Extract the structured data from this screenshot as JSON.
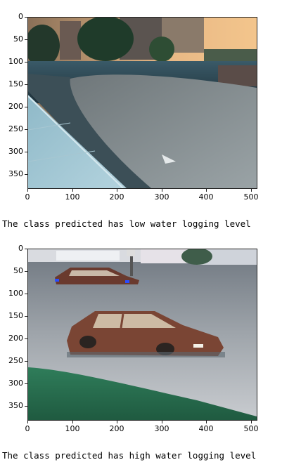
{
  "plots": [
    {
      "yticks": [
        "0",
        "50",
        "100",
        "150",
        "200",
        "250",
        "300",
        "350"
      ],
      "xticks": [
        "0",
        "100",
        "200",
        "300",
        "400",
        "500"
      ],
      "output": "The class predicted has low water logging level"
    },
    {
      "yticks": [
        "0",
        "50",
        "100",
        "150",
        "200",
        "250",
        "300",
        "350"
      ],
      "xticks": [
        "0",
        "100",
        "200",
        "300",
        "400",
        "500"
      ],
      "output": "The class predicted has high water logging level"
    }
  ]
}
